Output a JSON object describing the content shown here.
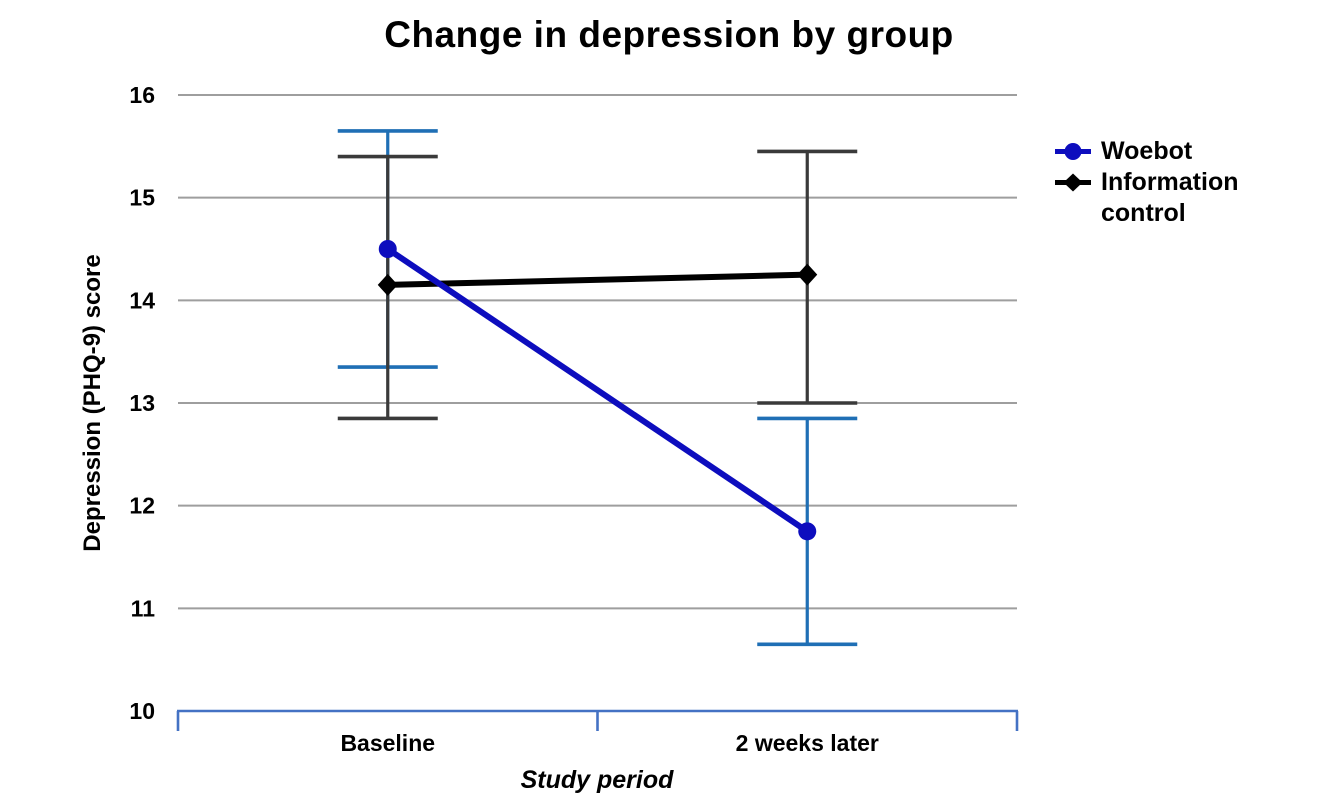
{
  "chart_data": {
    "type": "line",
    "title": "Change in depression by group",
    "xlabel": "Study period",
    "ylabel": "Depression (PHQ-9) score",
    "categories": [
      "Baseline",
      "2 weeks later"
    ],
    "ylim": [
      10,
      16
    ],
    "ytick_step": 1,
    "grid": "horizontal-gridlines",
    "legend_position": "right",
    "axis_color": "#4472C4",
    "grid_color": "#9E9E9E",
    "series": [
      {
        "name": "Woebot",
        "marker": "circle",
        "color": "#0D0DBE",
        "error_color": "#1F6FB5",
        "values": [
          14.5,
          11.75
        ],
        "error_low": [
          13.35,
          10.65
        ],
        "error_high": [
          15.65,
          12.85
        ]
      },
      {
        "name": "Information control",
        "marker": "diamond",
        "color": "#000000",
        "error_color": "#3A3A3A",
        "values": [
          14.15,
          14.25
        ],
        "error_low": [
          12.85,
          13.0
        ],
        "error_high": [
          15.4,
          15.45
        ]
      }
    ]
  }
}
